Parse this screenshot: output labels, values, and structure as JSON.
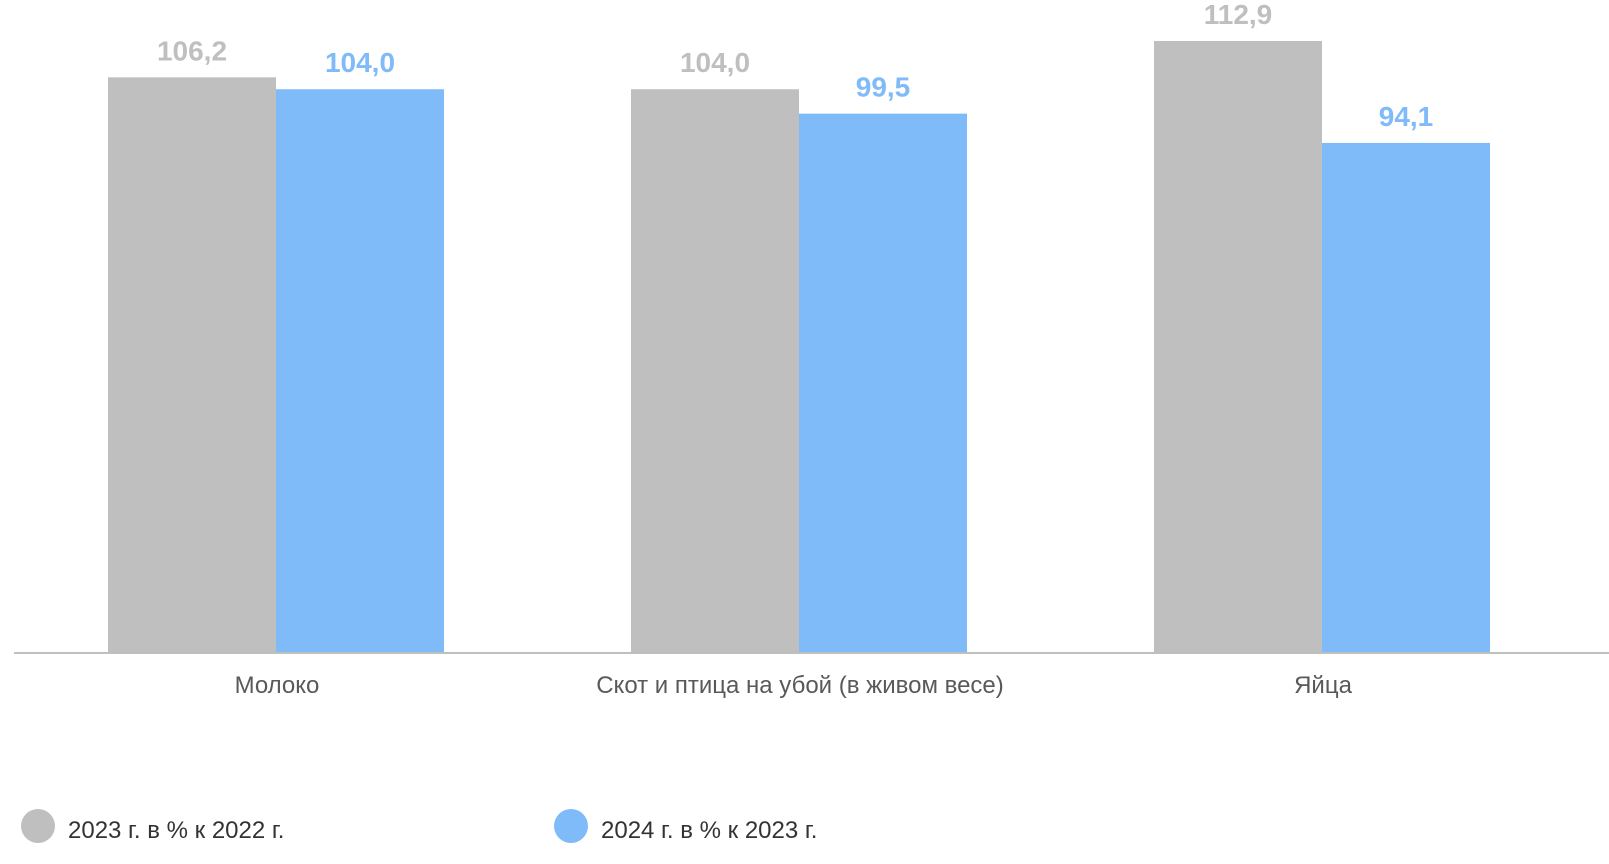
{
  "chart_data": {
    "type": "bar",
    "categories": [
      "Молоко",
      "Скот и птица на убой (в живом весе)",
      "Яйца"
    ],
    "series": [
      {
        "name": "2023 г. в % к 2022 г.",
        "values": [
          106.2,
          104.0,
          112.9
        ],
        "value_labels": [
          "106,2",
          "104,0",
          "112,9"
        ],
        "color": "#bfbfbf"
      },
      {
        "name": "2024 г. в % к 2023 г.",
        "values": [
          104.0,
          99.5,
          94.1
        ],
        "value_labels": [
          "104,0",
          "99,5",
          "94,1"
        ],
        "color": "#7fbaf9"
      }
    ],
    "ylim": [
      0,
      112.9
    ],
    "grid": false,
    "legend_position": "bottom-left"
  }
}
